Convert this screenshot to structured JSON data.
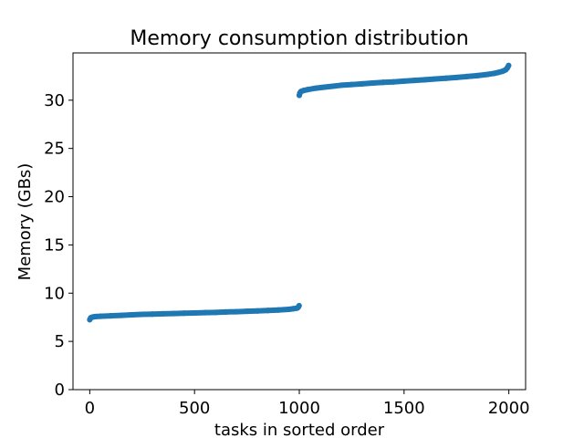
{
  "chart_data": {
    "type": "scatter",
    "title": "Memory consumption distribution",
    "xlabel": "tasks in sorted order",
    "ylabel": "Memory (GBs)",
    "xlim": [
      -80,
      2080
    ],
    "ylim": [
      0,
      34.9
    ],
    "xticks": [
      0,
      500,
      1000,
      1500,
      2000
    ],
    "yticks": [
      0,
      5,
      10,
      15,
      20,
      25,
      30
    ],
    "grid": false,
    "series": [
      {
        "color": "#1f77b4",
        "points": [
          [
            0,
            7.25
          ],
          [
            5,
            7.45
          ],
          [
            10,
            7.5
          ],
          [
            20,
            7.55
          ],
          [
            30,
            7.58
          ],
          [
            50,
            7.6
          ],
          [
            100,
            7.65
          ],
          [
            150,
            7.7
          ],
          [
            200,
            7.75
          ],
          [
            250,
            7.8
          ],
          [
            300,
            7.83
          ],
          [
            350,
            7.86
          ],
          [
            400,
            7.89
          ],
          [
            450,
            7.92
          ],
          [
            500,
            7.95
          ],
          [
            550,
            7.98
          ],
          [
            600,
            8.0
          ],
          [
            650,
            8.05
          ],
          [
            700,
            8.08
          ],
          [
            750,
            8.12
          ],
          [
            800,
            8.16
          ],
          [
            850,
            8.2
          ],
          [
            900,
            8.25
          ],
          [
            950,
            8.32
          ],
          [
            970,
            8.38
          ],
          [
            990,
            8.45
          ],
          [
            995,
            8.55
          ],
          [
            999,
            8.7
          ],
          [
            1000,
            30.5
          ],
          [
            1003,
            30.75
          ],
          [
            1008,
            30.9
          ],
          [
            1020,
            31.0
          ],
          [
            1040,
            31.1
          ],
          [
            1080,
            31.25
          ],
          [
            1120,
            31.35
          ],
          [
            1160,
            31.45
          ],
          [
            1200,
            31.55
          ],
          [
            1250,
            31.62
          ],
          [
            1300,
            31.7
          ],
          [
            1350,
            31.78
          ],
          [
            1400,
            31.85
          ],
          [
            1450,
            31.9
          ],
          [
            1500,
            31.98
          ],
          [
            1550,
            32.05
          ],
          [
            1600,
            32.12
          ],
          [
            1650,
            32.2
          ],
          [
            1700,
            32.28
          ],
          [
            1750,
            32.36
          ],
          [
            1800,
            32.45
          ],
          [
            1850,
            32.55
          ],
          [
            1900,
            32.68
          ],
          [
            1930,
            32.78
          ],
          [
            1950,
            32.88
          ],
          [
            1970,
            33.0
          ],
          [
            1985,
            33.15
          ],
          [
            1993,
            33.35
          ],
          [
            1999,
            33.6
          ]
        ]
      }
    ]
  }
}
